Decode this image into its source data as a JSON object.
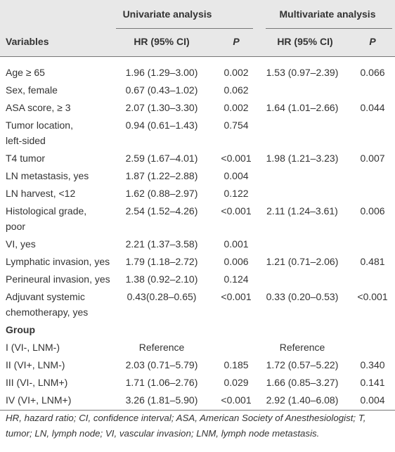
{
  "table": {
    "group_headers": [
      "Univariate analysis",
      "Multivariate analysis"
    ],
    "columns": [
      "Variables",
      "HR (95% CI)",
      "P",
      "HR (95% CI)",
      "P"
    ],
    "rows": [
      [
        [
          "Age ≥ 65"
        ],
        "1.96 (1.29–3.00)",
        "0.002",
        "1.53 (0.97–2.39)",
        "0.066"
      ],
      [
        [
          "Sex, female"
        ],
        "0.67 (0.43–1.02)",
        "0.062",
        null,
        null
      ],
      [
        [
          "ASA score, ≥ 3"
        ],
        "2.07 (1.30–3.30)",
        "0.002",
        "1.64 (1.01–2.66)",
        "0.044"
      ],
      [
        [
          "Tumor location,",
          "left-sided"
        ],
        "0.94 (0.61–1.43)",
        "0.754",
        null,
        null
      ],
      [
        [
          "T4 tumor"
        ],
        "2.59 (1.67–4.01)",
        "<0.001",
        "1.98 (1.21–3.23)",
        "0.007"
      ],
      [
        [
          "LN metastasis, yes"
        ],
        "1.87 (1.22–2.88)",
        "0.004",
        null,
        null
      ],
      [
        [
          "LN harvest, <12"
        ],
        "1.62 (0.88–2.97)",
        "0.122",
        null,
        null
      ],
      [
        [
          "Histological grade,",
          "poor"
        ],
        "2.54 (1.52–4.26)",
        "<0.001",
        "2.11 (1.24–3.61)",
        "0.006"
      ],
      [
        [
          "VI, yes"
        ],
        "2.21 (1.37–3.58)",
        "0.001",
        null,
        null
      ],
      [
        [
          "Lymphatic invasion, yes"
        ],
        "1.79 (1.18–2.72)",
        "0.006",
        "1.21 (0.71–2.06)",
        "0.481"
      ],
      [
        [
          "Perineural invasion, yes"
        ],
        "1.38 (0.92–2.10)",
        "0.124",
        null,
        null
      ],
      [
        [
          "Adjuvant systemic",
          "chemotherapy, yes"
        ],
        "0.43(0.28–0.65)",
        "<0.001",
        "0.33 (0.20–0.53)",
        "<0.001"
      ]
    ],
    "group_label": "Group",
    "group_rows": [
      [
        [
          "I (VI-, LNM-)"
        ],
        "Reference",
        null,
        "Reference",
        null
      ],
      [
        [
          "II (VI+, LNM-)"
        ],
        "2.03 (0.71–5.79)",
        "0.185",
        "1.72 (0.57–5.22)",
        "0.340"
      ],
      [
        [
          "III (VI-, LNM+)"
        ],
        "1.71 (1.06–2.76)",
        "0.029",
        "1.66 (0.85–3.27)",
        "0.141"
      ],
      [
        [
          "IV (VI+, LNM+)"
        ],
        "3.26 (1.81–5.90)",
        "<0.001",
        "2.92 (1.40–6.08)",
        "0.004"
      ]
    ],
    "footnote": [
      "HR, hazard ratio; CI, confidence interval; ASA, American Society of Anesthesiologist; T,",
      "tumor; LN, lymph node; VI, vascular invasion; LNM, lymph node metastasis."
    ]
  }
}
